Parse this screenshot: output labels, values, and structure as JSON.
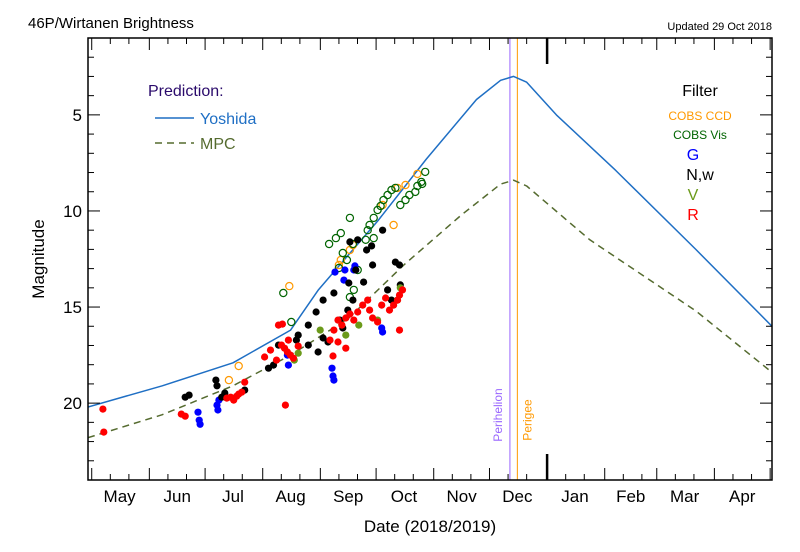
{
  "chart_data": {
    "type": "scatter",
    "title": "46P/Wirtanen Brightness",
    "updated": "Updated 29 Oct 2018",
    "xlabel": "Date (2018/2019)",
    "ylabel": "Magnitude",
    "x_units": "days since 2018-04-29",
    "xlim": [
      0,
      368
    ],
    "ylim": [
      24,
      1
    ],
    "y_inverted": true,
    "y_ticks": [
      5,
      10,
      15,
      20
    ],
    "month_starts": [
      2,
      33,
      63,
      94,
      125,
      155,
      186,
      216,
      247,
      278,
      306,
      337,
      367
    ],
    "year_boundary": 247,
    "month_labels": [
      {
        "label": "May",
        "x": 17
      },
      {
        "label": "Jun",
        "x": 48
      },
      {
        "label": "Jul",
        "x": 78
      },
      {
        "label": "Aug",
        "x": 109
      },
      {
        "label": "Sep",
        "x": 140
      },
      {
        "label": "Oct",
        "x": 170
      },
      {
        "label": "Nov",
        "x": 201
      },
      {
        "label": "Dec",
        "x": 231
      },
      {
        "label": "Jan",
        "x": 262
      },
      {
        "label": "Feb",
        "x": 292
      },
      {
        "label": "Mar",
        "x": 321
      },
      {
        "label": "Apr",
        "x": 352
      }
    ],
    "events": [
      {
        "label": "Perihelion",
        "x": 227,
        "color": "#9966ff"
      },
      {
        "label": "Perigee",
        "x": 231,
        "color": "#ff9900"
      }
    ],
    "prediction_title": "Prediction:",
    "prediction_color": "#2a0a6b",
    "predictions": [
      {
        "name": "Yoshida",
        "color": "#1f6fc4",
        "dash": false,
        "points": [
          [
            0,
            20.2
          ],
          [
            40,
            19.1
          ],
          [
            78,
            17.9
          ],
          [
            109,
            16.2
          ],
          [
            124,
            14.1
          ],
          [
            156,
            10.5
          ],
          [
            182,
            7.3
          ],
          [
            209,
            4.2
          ],
          [
            222,
            3.2
          ],
          [
            229,
            3.0
          ],
          [
            236,
            3.3
          ],
          [
            252,
            5.0
          ],
          [
            284,
            7.9
          ],
          [
            327,
            12.0
          ],
          [
            368,
            16.0
          ]
        ]
      },
      {
        "name": "MPC",
        "color": "#556b2f",
        "dash": true,
        "points": [
          [
            0,
            21.8
          ],
          [
            40,
            20.6
          ],
          [
            78,
            19.1
          ],
          [
            109,
            17.5
          ],
          [
            140,
            15.6
          ],
          [
            170,
            12.8
          ],
          [
            201,
            10.2
          ],
          [
            222,
            8.6
          ],
          [
            229,
            8.4
          ],
          [
            236,
            8.7
          ],
          [
            270,
            11.5
          ],
          [
            327,
            15.2
          ],
          [
            368,
            18.4
          ]
        ]
      }
    ],
    "filter_title": "Filter",
    "series": [
      {
        "name": "COBS CCD",
        "color": "#ff9900",
        "marker": "open",
        "points": [
          [
            108.3,
            13.91
          ],
          [
            81.1,
            18.07
          ],
          [
            75.8,
            18.8
          ],
          [
            140.9,
            12.03
          ],
          [
            142.5,
            11.77
          ],
          [
            135,
            12.81
          ],
          [
            158.5,
            9.69
          ],
          [
            164.4,
            10.73
          ],
          [
            166.5,
            8.8
          ],
          [
            170.8,
            8.65
          ],
          [
            177.2,
            8.07
          ],
          [
            136,
            12.55
          ]
        ]
      },
      {
        "name": "COBS Vis",
        "color": "#006400",
        "marker": "open",
        "points": [
          [
            105.1,
            14.27
          ],
          [
            109.4,
            15.78
          ],
          [
            129.7,
            11.72
          ],
          [
            133.4,
            11.41
          ],
          [
            136,
            11.15
          ],
          [
            140.9,
            10.36
          ],
          [
            142.5,
            11.72
          ],
          [
            137.1,
            12.19
          ],
          [
            139.3,
            12.55
          ],
          [
            135,
            12.97
          ],
          [
            145.1,
            13.07
          ],
          [
            150.5,
            11.0
          ],
          [
            151.5,
            10.73
          ],
          [
            153.7,
            10.36
          ],
          [
            155.8,
            9.95
          ],
          [
            157.4,
            9.74
          ],
          [
            159,
            9.43
          ],
          [
            161.2,
            9.17
          ],
          [
            163.3,
            8.91
          ],
          [
            165.4,
            8.8
          ],
          [
            168,
            9.69
          ],
          [
            170.8,
            9.43
          ],
          [
            172.9,
            9.17
          ],
          [
            176.1,
            9.01
          ],
          [
            177.2,
            8.7
          ],
          [
            179.3,
            8.49
          ],
          [
            181.4,
            7.97
          ],
          [
            179.8,
            8.59
          ],
          [
            149.4,
            11.5
          ],
          [
            153.7,
            11.41
          ],
          [
            143,
            14.11
          ],
          [
            140.9,
            14.48
          ]
        ]
      },
      {
        "name": "G",
        "color": "#0000ff",
        "marker": "filled",
        "points": [
          [
            59.2,
            20.47
          ],
          [
            59.8,
            20.89
          ],
          [
            60.3,
            21.1
          ],
          [
            69.4,
            20.1
          ],
          [
            69.9,
            20.36
          ],
          [
            70.4,
            19.84
          ],
          [
            107.8,
            18.02
          ],
          [
            107.3,
            17.5
          ],
          [
            131.3,
            18.18
          ],
          [
            131.8,
            18.59
          ],
          [
            132.3,
            18.8
          ],
          [
            143,
            13.07
          ],
          [
            143.6,
            12.86
          ],
          [
            132.9,
            13.18
          ],
          [
            137.7,
            13.6
          ],
          [
            158,
            16.09
          ],
          [
            158.5,
            16.3
          ],
          [
            138.2,
            13.07
          ]
        ]
      },
      {
        "name": "N,w",
        "color": "#000000",
        "marker": "filled",
        "points": [
          [
            52.3,
            19.69
          ],
          [
            54.4,
            19.58
          ],
          [
            68.8,
            18.8
          ],
          [
            69.4,
            19.1
          ],
          [
            72,
            19.69
          ],
          [
            73.6,
            19.48
          ],
          [
            84.3,
            19.32
          ],
          [
            97.1,
            18.18
          ],
          [
            99.8,
            18.02
          ],
          [
            102.5,
            16.98
          ],
          [
            112.1,
            16.72
          ],
          [
            113.1,
            16.46
          ],
          [
            118.5,
            15.94
          ],
          [
            122.7,
            15.26
          ],
          [
            126.5,
            16.61
          ],
          [
            129.1,
            16.82
          ],
          [
            135.5,
            15.68
          ],
          [
            137.1,
            16.09
          ],
          [
            139.8,
            15.16
          ],
          [
            142.5,
            14.64
          ],
          [
            144.1,
            13.07
          ],
          [
            148.3,
            13.7
          ],
          [
            140.3,
            13.75
          ],
          [
            149.9,
            12.03
          ],
          [
            145.1,
            11.5
          ],
          [
            158.5,
            11.0
          ],
          [
            165.4,
            12.66
          ],
          [
            167.6,
            12.81
          ],
          [
            161.2,
            14.11
          ],
          [
            153.1,
            12.81
          ],
          [
            163.3,
            14.64
          ],
          [
            168,
            13.85
          ],
          [
            126.5,
            14.64
          ],
          [
            132.3,
            14.27
          ],
          [
            123.8,
            17.34
          ],
          [
            118.5,
            16.98
          ],
          [
            152.6,
            11.82
          ],
          [
            140.9,
            11.61
          ]
        ]
      },
      {
        "name": "V",
        "color": "#6b9a1a",
        "marker": "filled",
        "points": [
          [
            111,
            17.76
          ],
          [
            113.1,
            17.4
          ],
          [
            124.9,
            16.2
          ],
          [
            138.7,
            16.46
          ],
          [
            145.7,
            15.94
          ],
          [
            168,
            14.0
          ],
          [
            166.5,
            14.64
          ],
          [
            155.8,
            15.68
          ]
        ]
      },
      {
        "name": "R",
        "color": "#ff0000",
        "marker": "filled",
        "points": [
          [
            8,
            20.31
          ],
          [
            8.5,
            21.51
          ],
          [
            50.2,
            20.57
          ],
          [
            52.3,
            20.68
          ],
          [
            74.7,
            19.74
          ],
          [
            76.8,
            19.69
          ],
          [
            78.4,
            19.84
          ],
          [
            80,
            19.64
          ],
          [
            81.1,
            19.53
          ],
          [
            82.7,
            19.43
          ],
          [
            84.3,
            18.91
          ],
          [
            106.2,
            20.1
          ],
          [
            95,
            17.6
          ],
          [
            98.2,
            17.24
          ],
          [
            104.1,
            16.98
          ],
          [
            105.7,
            17.14
          ],
          [
            107.3,
            17.34
          ],
          [
            108.9,
            17.5
          ],
          [
            110.5,
            17.66
          ],
          [
            107.8,
            16.72
          ],
          [
            113.1,
            17.03
          ],
          [
            131.8,
            17.55
          ],
          [
            130.2,
            16.72
          ],
          [
            132.3,
            16.2
          ],
          [
            134.5,
            15.68
          ],
          [
            136.6,
            15.94
          ],
          [
            138.7,
            15.57
          ],
          [
            140.9,
            15.36
          ],
          [
            143,
            15.68
          ],
          [
            145.1,
            15.26
          ],
          [
            134.5,
            16.82
          ],
          [
            138.7,
            17.14
          ],
          [
            147.8,
            14.9
          ],
          [
            150.5,
            14.64
          ],
          [
            151.5,
            15.16
          ],
          [
            153.1,
            15.57
          ],
          [
            155.8,
            15.78
          ],
          [
            158,
            14.9
          ],
          [
            160.1,
            14.53
          ],
          [
            162.2,
            15.16
          ],
          [
            164.4,
            14.9
          ],
          [
            166.5,
            14.64
          ],
          [
            167.6,
            14.38
          ],
          [
            169.2,
            14.11
          ],
          [
            167.6,
            16.2
          ],
          [
            104.6,
            15.89
          ],
          [
            102.5,
            15.94
          ],
          [
            101.4,
            17.76
          ]
        ]
      }
    ]
  }
}
